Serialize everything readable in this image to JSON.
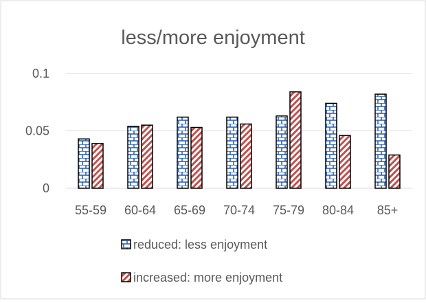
{
  "chart_data": {
    "type": "bar",
    "title": "less/more enjoyment",
    "xlabel": "",
    "ylabel": "",
    "categories": [
      "55-59",
      "60-64",
      "65-69",
      "70-74",
      "75-79",
      "80-84",
      "85+"
    ],
    "series": [
      {
        "name": "reduced: less enjoyment",
        "values": [
          0.043,
          0.054,
          0.062,
          0.062,
          0.063,
          0.074,
          0.082
        ],
        "color": "#2e63b8",
        "pattern": "brick"
      },
      {
        "name": "increased: more enjoyment",
        "values": [
          0.039,
          0.055,
          0.053,
          0.056,
          0.084,
          0.046,
          0.029
        ],
        "color": "#c0504d",
        "pattern": "diagonal"
      }
    ],
    "yticks": [
      0,
      0.05,
      0.1
    ],
    "ytick_labels": [
      "0",
      "0.05",
      "0.1"
    ],
    "ylim": [
      0,
      0.1
    ],
    "grid": true,
    "legend_position": "bottom"
  }
}
